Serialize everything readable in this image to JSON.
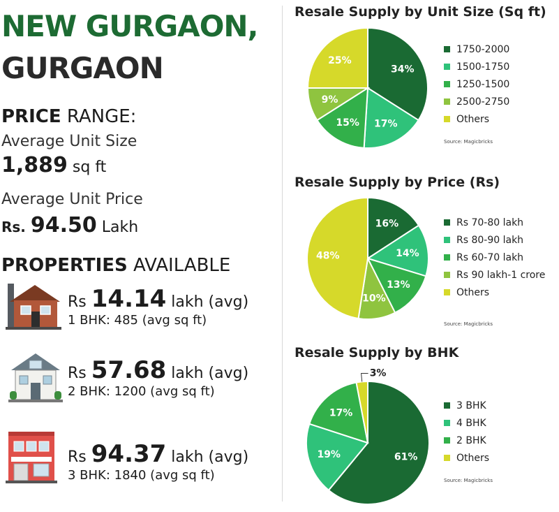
{
  "header": {
    "line1": "NEW GURGAON,",
    "line2": "GURGAON"
  },
  "price_range": {
    "bold": "PRICE",
    "rest": " RANGE:"
  },
  "avg_unit_size": {
    "label": "Average Unit Size",
    "value": "1,889",
    "unit": " sq ft"
  },
  "avg_unit_price": {
    "label": "Average Unit Price",
    "prefix": "Rs. ",
    "value": "94.50",
    "unit": " Lakh"
  },
  "properties": {
    "heading_bold": "PROPERTIES",
    "heading_rest": " AVAILABLE",
    "items": [
      {
        "prefix": "Rs ",
        "value": "14.14",
        "suffix": " lakh (avg)",
        "sub": "1 BHK: 485 (avg sq ft)",
        "icon": "brick-house-icon"
      },
      {
        "prefix": "Rs ",
        "value": "57.68",
        "suffix": " lakh (avg)",
        "sub": "2 BHK: 1200 (avg sq ft)",
        "icon": "villa-icon"
      },
      {
        "prefix": "Rs ",
        "value": "94.37",
        "suffix": " lakh (avg)",
        "sub": "3 BHK: 1840 (avg sq ft)",
        "icon": "shop-building-icon"
      }
    ]
  },
  "chart_data": [
    {
      "type": "pie",
      "title": "Resale Supply by Unit Size (Sq ft)",
      "labels": [
        "1750-2000",
        "1500-1750",
        "1250-1500",
        "2500-2750",
        "Others"
      ],
      "values": [
        34,
        17,
        15,
        9,
        25
      ],
      "value_labels": [
        "34%",
        "17%",
        "15%",
        "9%",
        "25%"
      ],
      "colors": [
        "#1a6a33",
        "#2fc27a",
        "#32b04a",
        "#8fc43f",
        "#d6d92a"
      ],
      "legend": "right",
      "source": "Source: Magicbricks"
    },
    {
      "type": "pie",
      "title": "Resale Supply by Price (Rs)",
      "labels": [
        "Rs 70-80 lakh",
        "Rs 80-90 lakh",
        "Rs 60-70 lakh",
        "Rs 90 lakh-1 crore",
        "Others"
      ],
      "values": [
        16,
        14,
        13,
        10,
        48
      ],
      "value_labels": [
        "16%",
        "14%",
        "13%",
        "10%",
        "48%"
      ],
      "colors": [
        "#1a6a33",
        "#2fc27a",
        "#32b04a",
        "#8fc43f",
        "#d6d92a"
      ],
      "legend": "right",
      "source": "Source: Magicbricks"
    },
    {
      "type": "pie",
      "title": "Resale Supply by BHK",
      "labels": [
        "3 BHK",
        "4 BHK",
        "2 BHK",
        "Others"
      ],
      "values": [
        61,
        19,
        17,
        3
      ],
      "value_labels": [
        "61%",
        "19%",
        "17%",
        "3%"
      ],
      "colors": [
        "#1a6a33",
        "#2fc27a",
        "#32b04a",
        "#d6d92a"
      ],
      "legend": "right",
      "source": "Source: Magicbricks"
    }
  ]
}
